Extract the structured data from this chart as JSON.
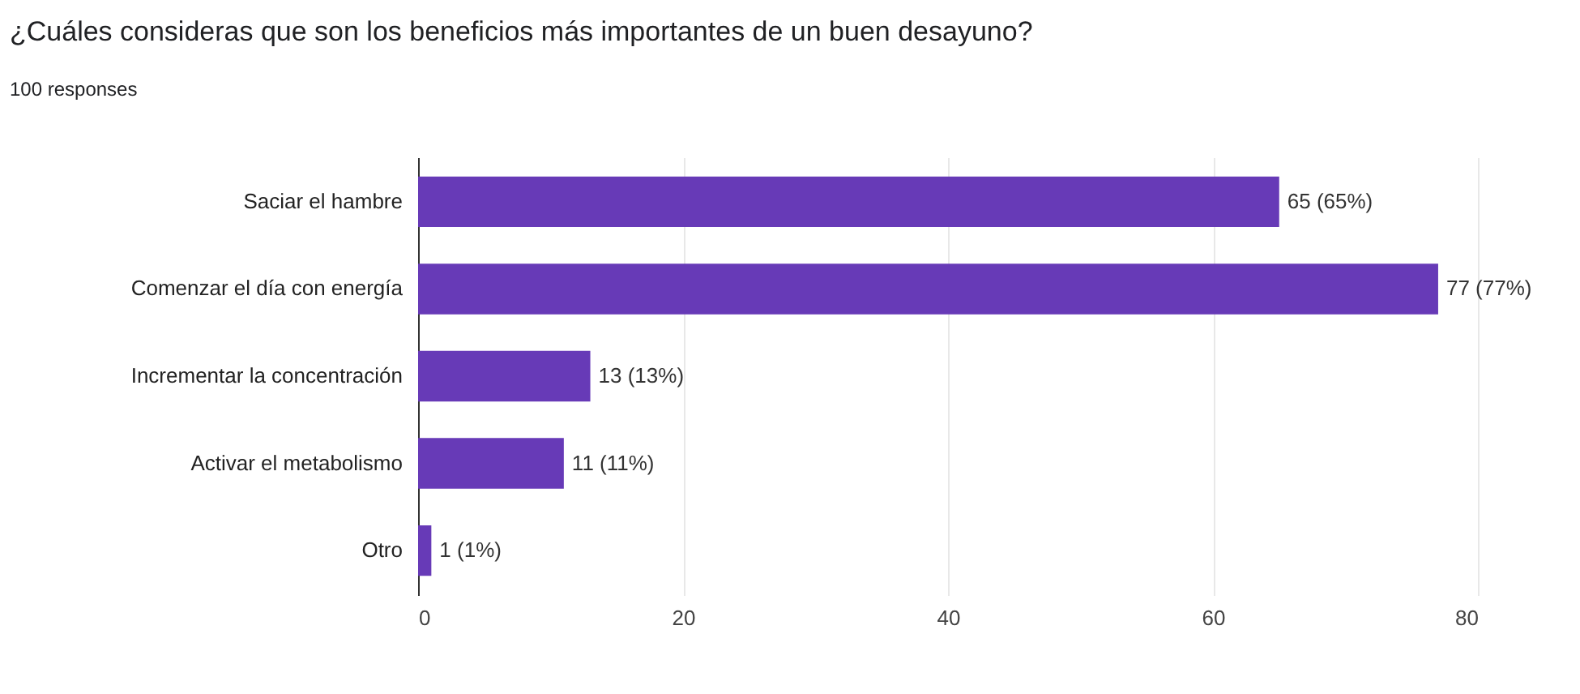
{
  "chart_data": {
    "type": "bar",
    "orientation": "horizontal",
    "title": "¿Cuáles consideras que son los beneficios más importantes de un buen desayuno?",
    "subtitle": "100 responses",
    "categories": [
      "Saciar el hambre",
      "Comenzar el día con energía",
      "Incrementar la concentración",
      "Activar el metabolismo",
      "Otro"
    ],
    "values": [
      65,
      77,
      13,
      11,
      1
    ],
    "value_labels": [
      "65 (65%)",
      "77 (77%)",
      "13 (13%)",
      "11 (11%)",
      "1 (1%)"
    ],
    "color": "#673ab7",
    "xlim": [
      0,
      80
    ],
    "xticks": [
      0,
      20,
      40,
      60,
      80
    ],
    "grid": "x"
  }
}
